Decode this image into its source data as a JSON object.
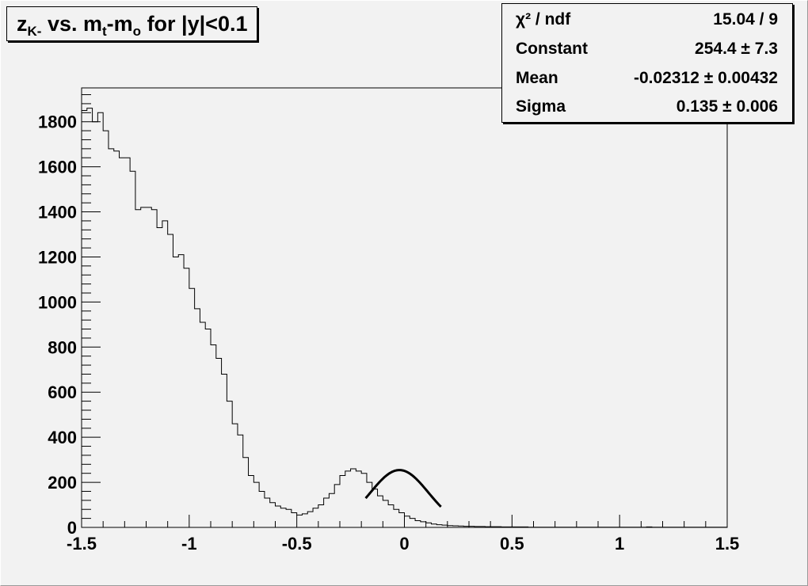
{
  "title": {
    "main": "z",
    "sub": "K-",
    "rest_a": " vs. m",
    "sub2": "t",
    "rest_b": "-m",
    "sub3": "o",
    "rest_c": " for |y|<0.1"
  },
  "stats": {
    "chi2_label": "χ² / ndf",
    "chi2_value": "15.04 / 9",
    "constant_label": "Constant",
    "constant_value": "254.4 ± 7.3",
    "mean_label": "Mean",
    "mean_value": "-0.02312 ± 0.00432",
    "sigma_label": "Sigma",
    "sigma_value": "0.135 ± 0.006"
  },
  "colors": {
    "background": "#f2f2f2",
    "line": "#000000"
  },
  "chart_data": {
    "type": "histogram",
    "title": "zK- vs. mt-mo for |y|<0.1",
    "xlim": [
      -1.5,
      1.5
    ],
    "ylim": [
      0,
      1950
    ],
    "x_ticks": [
      "-1.5",
      "-1",
      "-0.5",
      "0",
      "0.5",
      "1",
      "1.5"
    ],
    "x_tick_values": [
      -1.5,
      -1,
      -0.5,
      0,
      0.5,
      1,
      1.5
    ],
    "y_ticks": [
      "0",
      "200",
      "400",
      "600",
      "800",
      "1000",
      "1200",
      "1400",
      "1600",
      "1800"
    ],
    "y_tick_values": [
      0,
      200,
      400,
      600,
      800,
      1000,
      1200,
      1400,
      1600,
      1800
    ],
    "bin_width": 0.025,
    "bin_start": -1.5,
    "counts": [
      1850,
      1860,
      1800,
      1840,
      1760,
      1680,
      1670,
      1640,
      1640,
      1580,
      1410,
      1420,
      1420,
      1410,
      1330,
      1360,
      1300,
      1200,
      1210,
      1150,
      1060,
      970,
      910,
      880,
      810,
      750,
      680,
      560,
      460,
      410,
      310,
      230,
      200,
      160,
      130,
      110,
      95,
      85,
      80,
      65,
      55,
      60,
      70,
      85,
      100,
      130,
      150,
      190,
      230,
      250,
      260,
      250,
      240,
      200,
      170,
      140,
      120,
      100,
      80,
      65,
      50,
      40,
      30,
      25,
      20,
      15,
      12,
      10,
      8,
      7,
      6,
      5,
      5,
      4,
      4,
      3,
      3,
      3,
      2,
      2,
      2,
      2,
      2,
      1,
      1,
      1,
      1,
      1,
      1,
      1,
      1,
      1,
      1,
      1,
      1,
      1,
      1,
      1,
      1,
      1,
      1,
      1,
      1,
      1,
      1,
      2,
      1,
      1,
      1,
      1,
      1,
      1,
      1,
      1,
      1,
      1,
      1,
      1,
      1,
      1
    ],
    "fit": {
      "type": "gaus",
      "constant": 254.4,
      "mean": -0.02312,
      "sigma": 0.135,
      "range": [
        -0.18,
        0.17
      ]
    }
  }
}
